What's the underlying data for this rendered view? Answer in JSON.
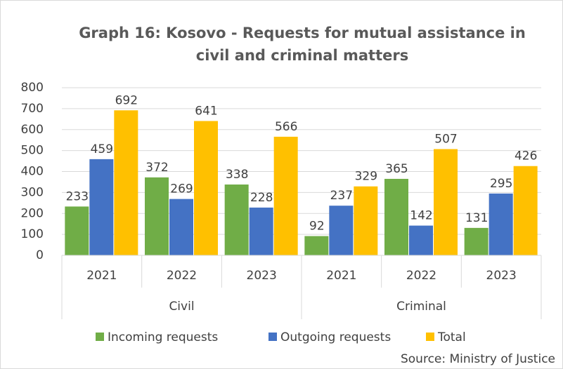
{
  "chart_data": {
    "type": "bar",
    "title": [
      "Graph 16: Kosovo - Requests for mutual assistance in",
      "civil and criminal matters"
    ],
    "groups": [
      {
        "label": "Civil",
        "categories": [
          "2021",
          "2022",
          "2023"
        ]
      },
      {
        "label": "Criminal",
        "categories": [
          "2021",
          "2022",
          "2023"
        ]
      }
    ],
    "series": [
      {
        "name": "Incoming requests",
        "color": "#70ad47",
        "values": [
          233,
          372,
          338,
          92,
          365,
          131
        ]
      },
      {
        "name": "Outgoing requests",
        "color": "#4472c4",
        "values": [
          459,
          269,
          228,
          237,
          142,
          295
        ]
      },
      {
        "name": "Total",
        "color": "#ffc000",
        "values": [
          692,
          641,
          566,
          329,
          507,
          426
        ]
      }
    ],
    "ylim": [
      0,
      800
    ],
    "yticks": [
      0,
      100,
      200,
      300,
      400,
      500,
      600,
      700,
      800
    ],
    "grid": true,
    "legend": "bottom",
    "source": "Source: Ministry of Justice"
  }
}
